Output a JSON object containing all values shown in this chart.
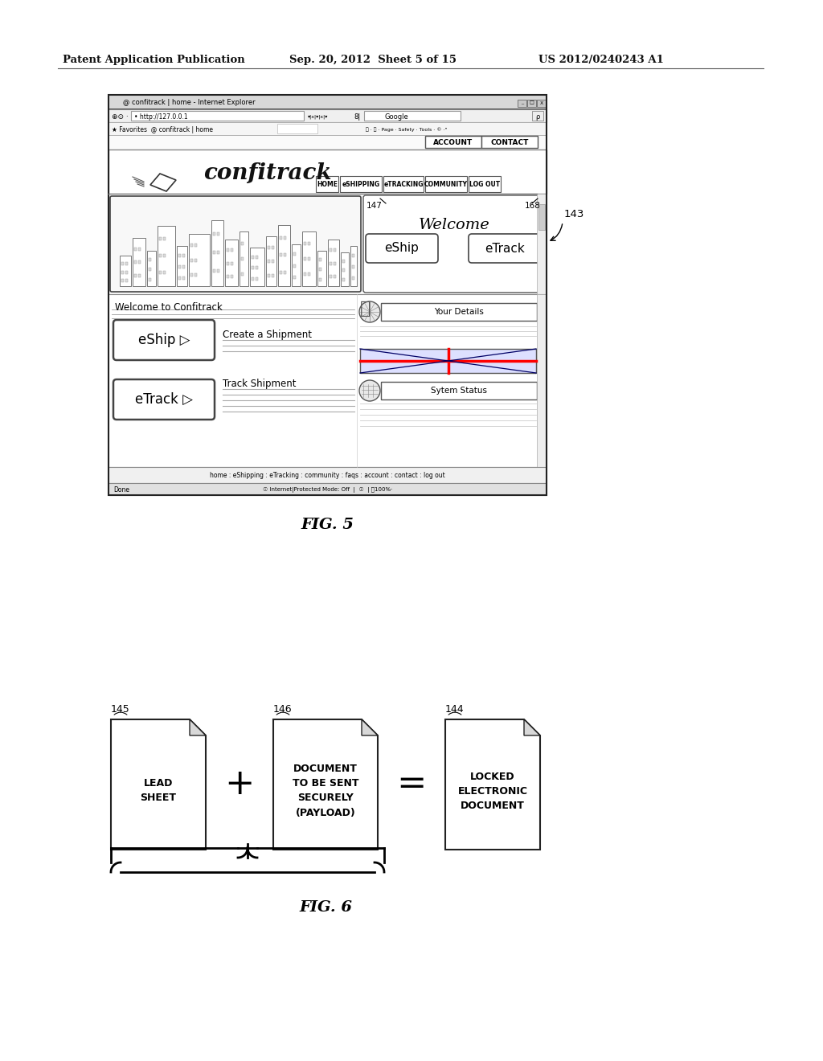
{
  "header_left": "Patent Application Publication",
  "header_center": "Sep. 20, 2012  Sheet 5 of 15",
  "header_right": "US 2012/0240243 A1",
  "fig5_label": "FIG. 5",
  "fig6_label": "FIG. 6",
  "fig5_ref": "143",
  "ref147": "147",
  "ref168": "168",
  "fig6_refs": {
    "lead": "145",
    "payload": "146",
    "locked": "144"
  },
  "browser_title": "confitrack | home - Internet Explorer",
  "browser_url": "http://127.0.0.1",
  "browser_search": "Google",
  "nav_items": [
    [
      "HOME",
      28
    ],
    [
      "eSHIPPING",
      52
    ],
    [
      "eTRACKING",
      50
    ],
    [
      "COMMUNITY",
      52
    ],
    [
      "LOG OUT",
      40
    ]
  ],
  "account_btn": "ACCOUNT",
  "contact_btn": "CONTACT",
  "welcome_confitrack": "Welcome to Confitrack",
  "your_details": "Your Details",
  "system_status": "Sytem Status",
  "create_shipment": "Create a Shipment",
  "track_shipment": "Track Shipment",
  "footer_links": "home : eShipping : eTracking : community : faqs : account : contact : log out",
  "footer_status": "Internet|Protected Mode: Off",
  "lead_sheet_text": "LEAD\nSHEET",
  "payload_text": "DOCUMENT\nTO BE SENT\nSECURELY\n(PAYLOAD)",
  "locked_text": "LOCKED\nELECTRONIC\nDOCUMENT",
  "bg_color": "#ffffff"
}
